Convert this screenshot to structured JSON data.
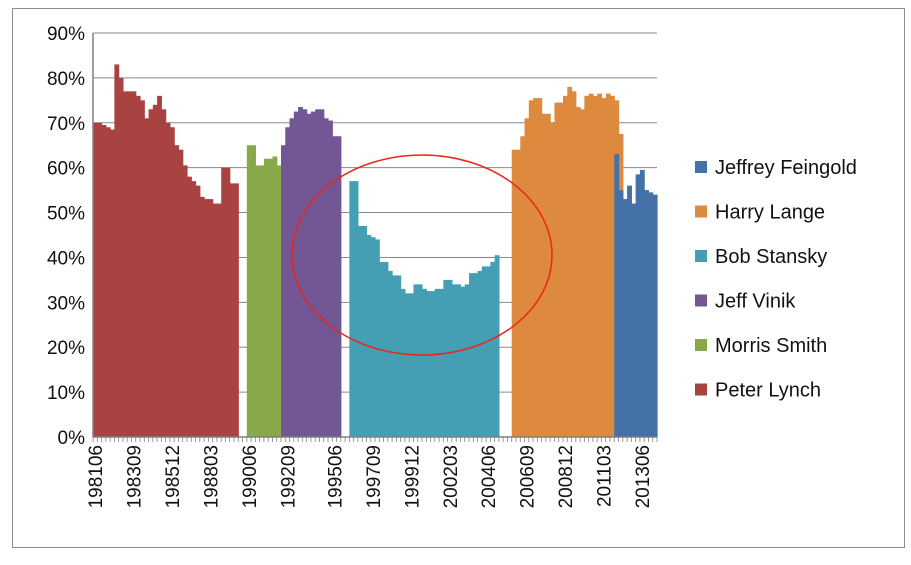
{
  "chart_data": {
    "type": "area",
    "title": "",
    "xlabel": "",
    "ylabel": "",
    "ylim": [
      0,
      90
    ],
    "y_ticks": [
      "0%",
      "10%",
      "20%",
      "30%",
      "40%",
      "50%",
      "60%",
      "70%",
      "80%",
      "90%"
    ],
    "x_tick_labels": [
      "198106",
      "198309",
      "198512",
      "198803",
      "199006",
      "199209",
      "199506",
      "199709",
      "199912",
      "200203",
      "200406",
      "200609",
      "200812",
      "201103",
      "201306"
    ],
    "grid": "horizontal",
    "legend_position": "right",
    "colors": {
      "Jeffrey Feingold": "#4371a8",
      "Harry Lange": "#de8a3e",
      "Bob Stansky": "#449eb4",
      "Jeff Vinik": "#735794",
      "Morris Smith": "#88a94a",
      "Peter Lynch": "#a94341",
      "annotation_ellipse": "#e8251c"
    },
    "legend": [
      "Jeffrey Feingold",
      "Harry Lange",
      "Bob Stansky",
      "Jeff Vinik",
      "Morris Smith",
      "Peter Lynch"
    ],
    "series": [
      {
        "name": "Peter Lynch",
        "start_period": "198106",
        "values": [
          70,
          70,
          69.5,
          69,
          68.5,
          83,
          80,
          77,
          77,
          77,
          76,
          75,
          71,
          73,
          74,
          76,
          73,
          70,
          69,
          65,
          64,
          60.5,
          58,
          57,
          56,
          53.5,
          53,
          53,
          52,
          52,
          60,
          60,
          56.5,
          56.5
        ]
      },
      {
        "name": "Morris Smith",
        "start_period": "199006",
        "values": [
          65,
          65,
          60.5,
          60.5,
          62,
          62,
          62.5,
          60.5
        ]
      },
      {
        "name": "Jeff Vinik",
        "start_period": "199206",
        "values": [
          65,
          69,
          71,
          72.5,
          73.5,
          73,
          72,
          72.5,
          73,
          73,
          71,
          70.5,
          67,
          67
        ]
      },
      {
        "name": "Bob Stansky",
        "start_period": "199606",
        "values": [
          57,
          57,
          47,
          47,
          45,
          44.5,
          44,
          39,
          39,
          37,
          36,
          36,
          33,
          32,
          32,
          34,
          34,
          33,
          32.5,
          32.5,
          33,
          33,
          35,
          35,
          34,
          34,
          33.5,
          34,
          36.5,
          36.5,
          37,
          38,
          38,
          39,
          40.5
        ]
      },
      {
        "name": "Harry Lange",
        "start_period": "200512",
        "values": [
          64,
          64,
          67,
          71,
          75,
          75.5,
          75.5,
          72,
          72,
          70,
          74.5,
          74.5,
          76,
          78,
          77,
          73.5,
          73,
          76,
          76.5,
          76,
          76.5,
          75.5,
          76.5,
          76,
          75,
          67.5
        ]
      },
      {
        "name": "Jeffrey Feingold",
        "start_period": "201112",
        "values": [
          63,
          55,
          53,
          56,
          52,
          58.5,
          59.5,
          55,
          54.5,
          54
        ]
      }
    ],
    "annotation": "red ellipse highlighting the Bob Stansky period"
  }
}
